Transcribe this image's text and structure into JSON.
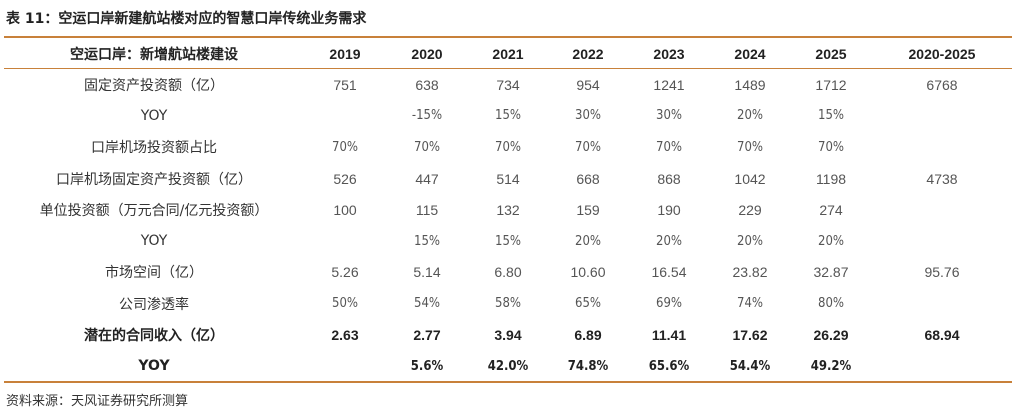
{
  "title": "表 11：空运口岸新建航站楼对应的智慧口岸传统业务需求",
  "header": [
    "空运口岸：新增航站楼建设",
    "2019",
    "2020",
    "2021",
    "2022",
    "2023",
    "2024",
    "2025",
    "2020-2025"
  ],
  "rows": [
    {
      "label": "固定资产投资额（亿）",
      "bold": false,
      "pct": false,
      "cells": [
        "751",
        "638",
        "734",
        "954",
        "1241",
        "1489",
        "1712",
        "6768"
      ]
    },
    {
      "label": "YOY",
      "bold": false,
      "pct": true,
      "cells": [
        "",
        "-15%",
        "15%",
        "30%",
        "30%",
        "20%",
        "15%",
        ""
      ]
    },
    {
      "label": "口岸机场投资额占比",
      "bold": false,
      "pct": true,
      "cells": [
        "70%",
        "70%",
        "70%",
        "70%",
        "70%",
        "70%",
        "70%",
        ""
      ]
    },
    {
      "label": "口岸机场固定资产投资额（亿）",
      "bold": false,
      "pct": false,
      "cells": [
        "526",
        "447",
        "514",
        "668",
        "868",
        "1042",
        "1198",
        "4738"
      ]
    },
    {
      "label": "单位投资额（万元合同/亿元投资额）",
      "bold": false,
      "pct": false,
      "cells": [
        "100",
        "115",
        "132",
        "159",
        "190",
        "229",
        "274",
        ""
      ]
    },
    {
      "label": "YOY",
      "bold": false,
      "pct": true,
      "cells": [
        "",
        "15%",
        "15%",
        "20%",
        "20%",
        "20%",
        "20%",
        ""
      ]
    },
    {
      "label": "市场空间（亿）",
      "bold": false,
      "pct": false,
      "cells": [
        "5.26",
        "5.14",
        "6.80",
        "10.60",
        "16.54",
        "23.82",
        "32.87",
        "95.76"
      ]
    },
    {
      "label": "公司渗透率",
      "bold": false,
      "pct": true,
      "cells": [
        "50%",
        "54%",
        "58%",
        "65%",
        "69%",
        "74%",
        "80%",
        ""
      ]
    },
    {
      "label": "潜在的合同收入（亿）",
      "bold": true,
      "pct": false,
      "cells": [
        "2.63",
        "2.77",
        "3.94",
        "6.89",
        "11.41",
        "17.62",
        "26.29",
        "68.94"
      ]
    },
    {
      "label": "YOY",
      "bold": true,
      "pct": true,
      "cells": [
        "",
        "5.6%",
        "42.0%",
        "74.8%",
        "65.6%",
        "54.4%",
        "49.2%",
        ""
      ]
    }
  ],
  "source": "资料来源：天风证券研究所测算",
  "colors": {
    "accent_rule": "#c8813a",
    "text": "#333333"
  }
}
